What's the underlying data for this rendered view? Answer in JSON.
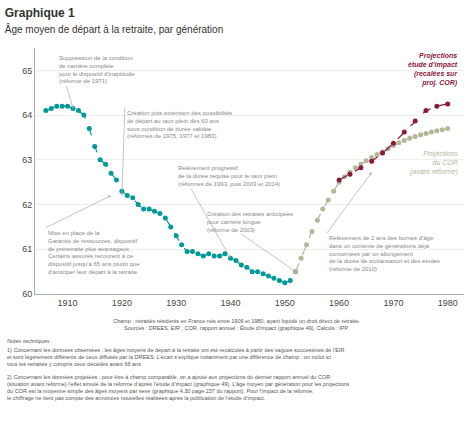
{
  "chart_data": {
    "type": "line",
    "title": "Graphique 1",
    "subtitle": "Âge moyen de départ à la retraite, par génération",
    "xlim": [
      1904,
      1983
    ],
    "ylim": [
      60,
      65.5
    ],
    "xticks": [
      1910,
      1920,
      1930,
      1940,
      1950,
      1960,
      1970,
      1980
    ],
    "yticks": [
      60,
      61,
      62,
      63,
      64,
      65
    ],
    "grid": "y",
    "series": [
      {
        "color": "#009999",
        "line_style": "dashed",
        "marker": "circle",
        "x": [
          1906,
          1907,
          1908,
          1909,
          1910,
          1911,
          1912,
          1913,
          1914,
          1915,
          1916,
          1917,
          1918,
          1919,
          1920,
          1921,
          1922,
          1923,
          1924,
          1925,
          1926,
          1927,
          1928,
          1929,
          1930,
          1931,
          1932,
          1933,
          1934,
          1935,
          1936,
          1937,
          1938,
          1939,
          1940,
          1941,
          1942,
          1943,
          1944,
          1945,
          1946,
          1947,
          1948,
          1949,
          1950,
          1951,
          1952
        ],
        "values": [
          64.1,
          64.15,
          64.2,
          64.2,
          64.2,
          64.15,
          64.1,
          64.0,
          63.7,
          63.3,
          63.0,
          62.9,
          62.7,
          62.55,
          62.3,
          62.2,
          62.15,
          62.0,
          61.9,
          61.9,
          61.85,
          61.8,
          61.7,
          61.5,
          61.3,
          61.1,
          60.95,
          60.95,
          60.9,
          60.85,
          60.9,
          60.85,
          60.85,
          60.9,
          60.8,
          60.75,
          60.65,
          60.6,
          60.5,
          60.5,
          60.45,
          60.4,
          60.35,
          60.3,
          60.25,
          60.3,
          60.5
        ]
      },
      {
        "name": "Projections\ndu COR\n(avant réforme)",
        "color": "#b0b89a",
        "line_style": "dashed",
        "marker": "circle",
        "x": [
          1952,
          1953,
          1954,
          1955,
          1956,
          1957,
          1958,
          1959,
          1960,
          1961,
          1962,
          1963,
          1964,
          1965,
          1966,
          1967,
          1968,
          1969,
          1970,
          1971,
          1972,
          1973,
          1974,
          1975,
          1976,
          1977,
          1978,
          1979,
          1980
        ],
        "values": [
          60.5,
          60.8,
          61.1,
          61.4,
          61.65,
          61.9,
          62.1,
          62.3,
          62.5,
          62.62,
          62.72,
          62.82,
          62.9,
          62.98,
          63.05,
          63.12,
          63.18,
          63.25,
          63.32,
          63.38,
          63.43,
          63.48,
          63.52,
          63.56,
          63.59,
          63.62,
          63.65,
          63.67,
          63.7
        ]
      },
      {
        "name": "Projections\nétude d'impact\n(recalées sur\nproj. COR)",
        "color": "#8b1a3a",
        "line_style": "dashed",
        "marker": "circle",
        "x": [
          1960,
          1962,
          1964,
          1966,
          1968,
          1970,
          1972,
          1974,
          1976,
          1978,
          1980
        ],
        "values": [
          62.55,
          62.68,
          62.82,
          62.97,
          63.15,
          63.37,
          63.62,
          63.87,
          64.1,
          64.2,
          64.25
        ]
      }
    ],
    "annotations": [
      {
        "text": "Suppression de la condition\nde carrière complète\npour le dispositif d'inaptitude\n(réforme de 1971)",
        "x": 1911,
        "y": 64.15
      },
      {
        "text": "Création puis extension des possibilités\nde départ au taux plein dès 60 ans\nsous condition de durée validée\n(réformes de 1975, 1977 et 1983)",
        "x": 1920,
        "y": 62.2
      },
      {
        "text": "Relèvement progressif\nde la durée requise pour le taux plein\n(réformes de 1993, puis 2003 et 2014)",
        "x": 1940,
        "y": 60.8
      },
      {
        "text": "Mise en place de la\nGarantie de ressources, dispositif\nde préretraite plus avantageux ;\nCertains assurés recourent à ce\ndispositif jusqu'à 65 ans plutôt que\nd'anticiper leur départ à la retraite",
        "x": 1918,
        "y": 62.2
      },
      {
        "text": "Création des retraites anticipées\npour carrière longue\n(réforme de 2003)",
        "x": 1952,
        "y": 60.5
      },
      {
        "text": "Relèvement de 2 ans des bornes d'âge\ndans un contexte de générations déjà\nconcernées par un allongement\nde la durée de scolarisation et des études\n(réforme de 2010)",
        "x": 1966,
        "y": 62.72
      }
    ],
    "notes": [
      "Champ : retraités résidents en France nés entre 1906 et 1980, ayant liquidé un droit direct de retraite.\nSources : DREES, EIR ; COR, rapport annuel ; Étude d’impact (graphique 49). Calculs : IPP.",
      "Notes techniques :",
      "1) Concernant les données observées : les âges moyens de départ à la retraite ont été recalculés à partir des vagues successives de l’EIR\net sont légèrement différents de ceux diffusés par la DREES. L’écart s’explique notamment par une différence de champ : on inclut ici\ntous les retraités y compris ceux décédés avant 66 ans.",
      "2) Concernant les données projetées : pour être à champ comparable, on a ajouté aux projections du dernier rapport annuel du COR\n(situation avant réforme) l’effet simulé de la réforme d’après l’étude d’impact (graphique 49). L’âge moyen par génération pour les projections\ndu COR est la moyenne simple des âges moyens par sexe (graphique 4.30 page 237 du rapport). Pour l’impact de la réforme,\nle chiffrage ne tient pas compte des annonces nouvelles réalisées après la publication de l’étude d’impact."
    ]
  }
}
